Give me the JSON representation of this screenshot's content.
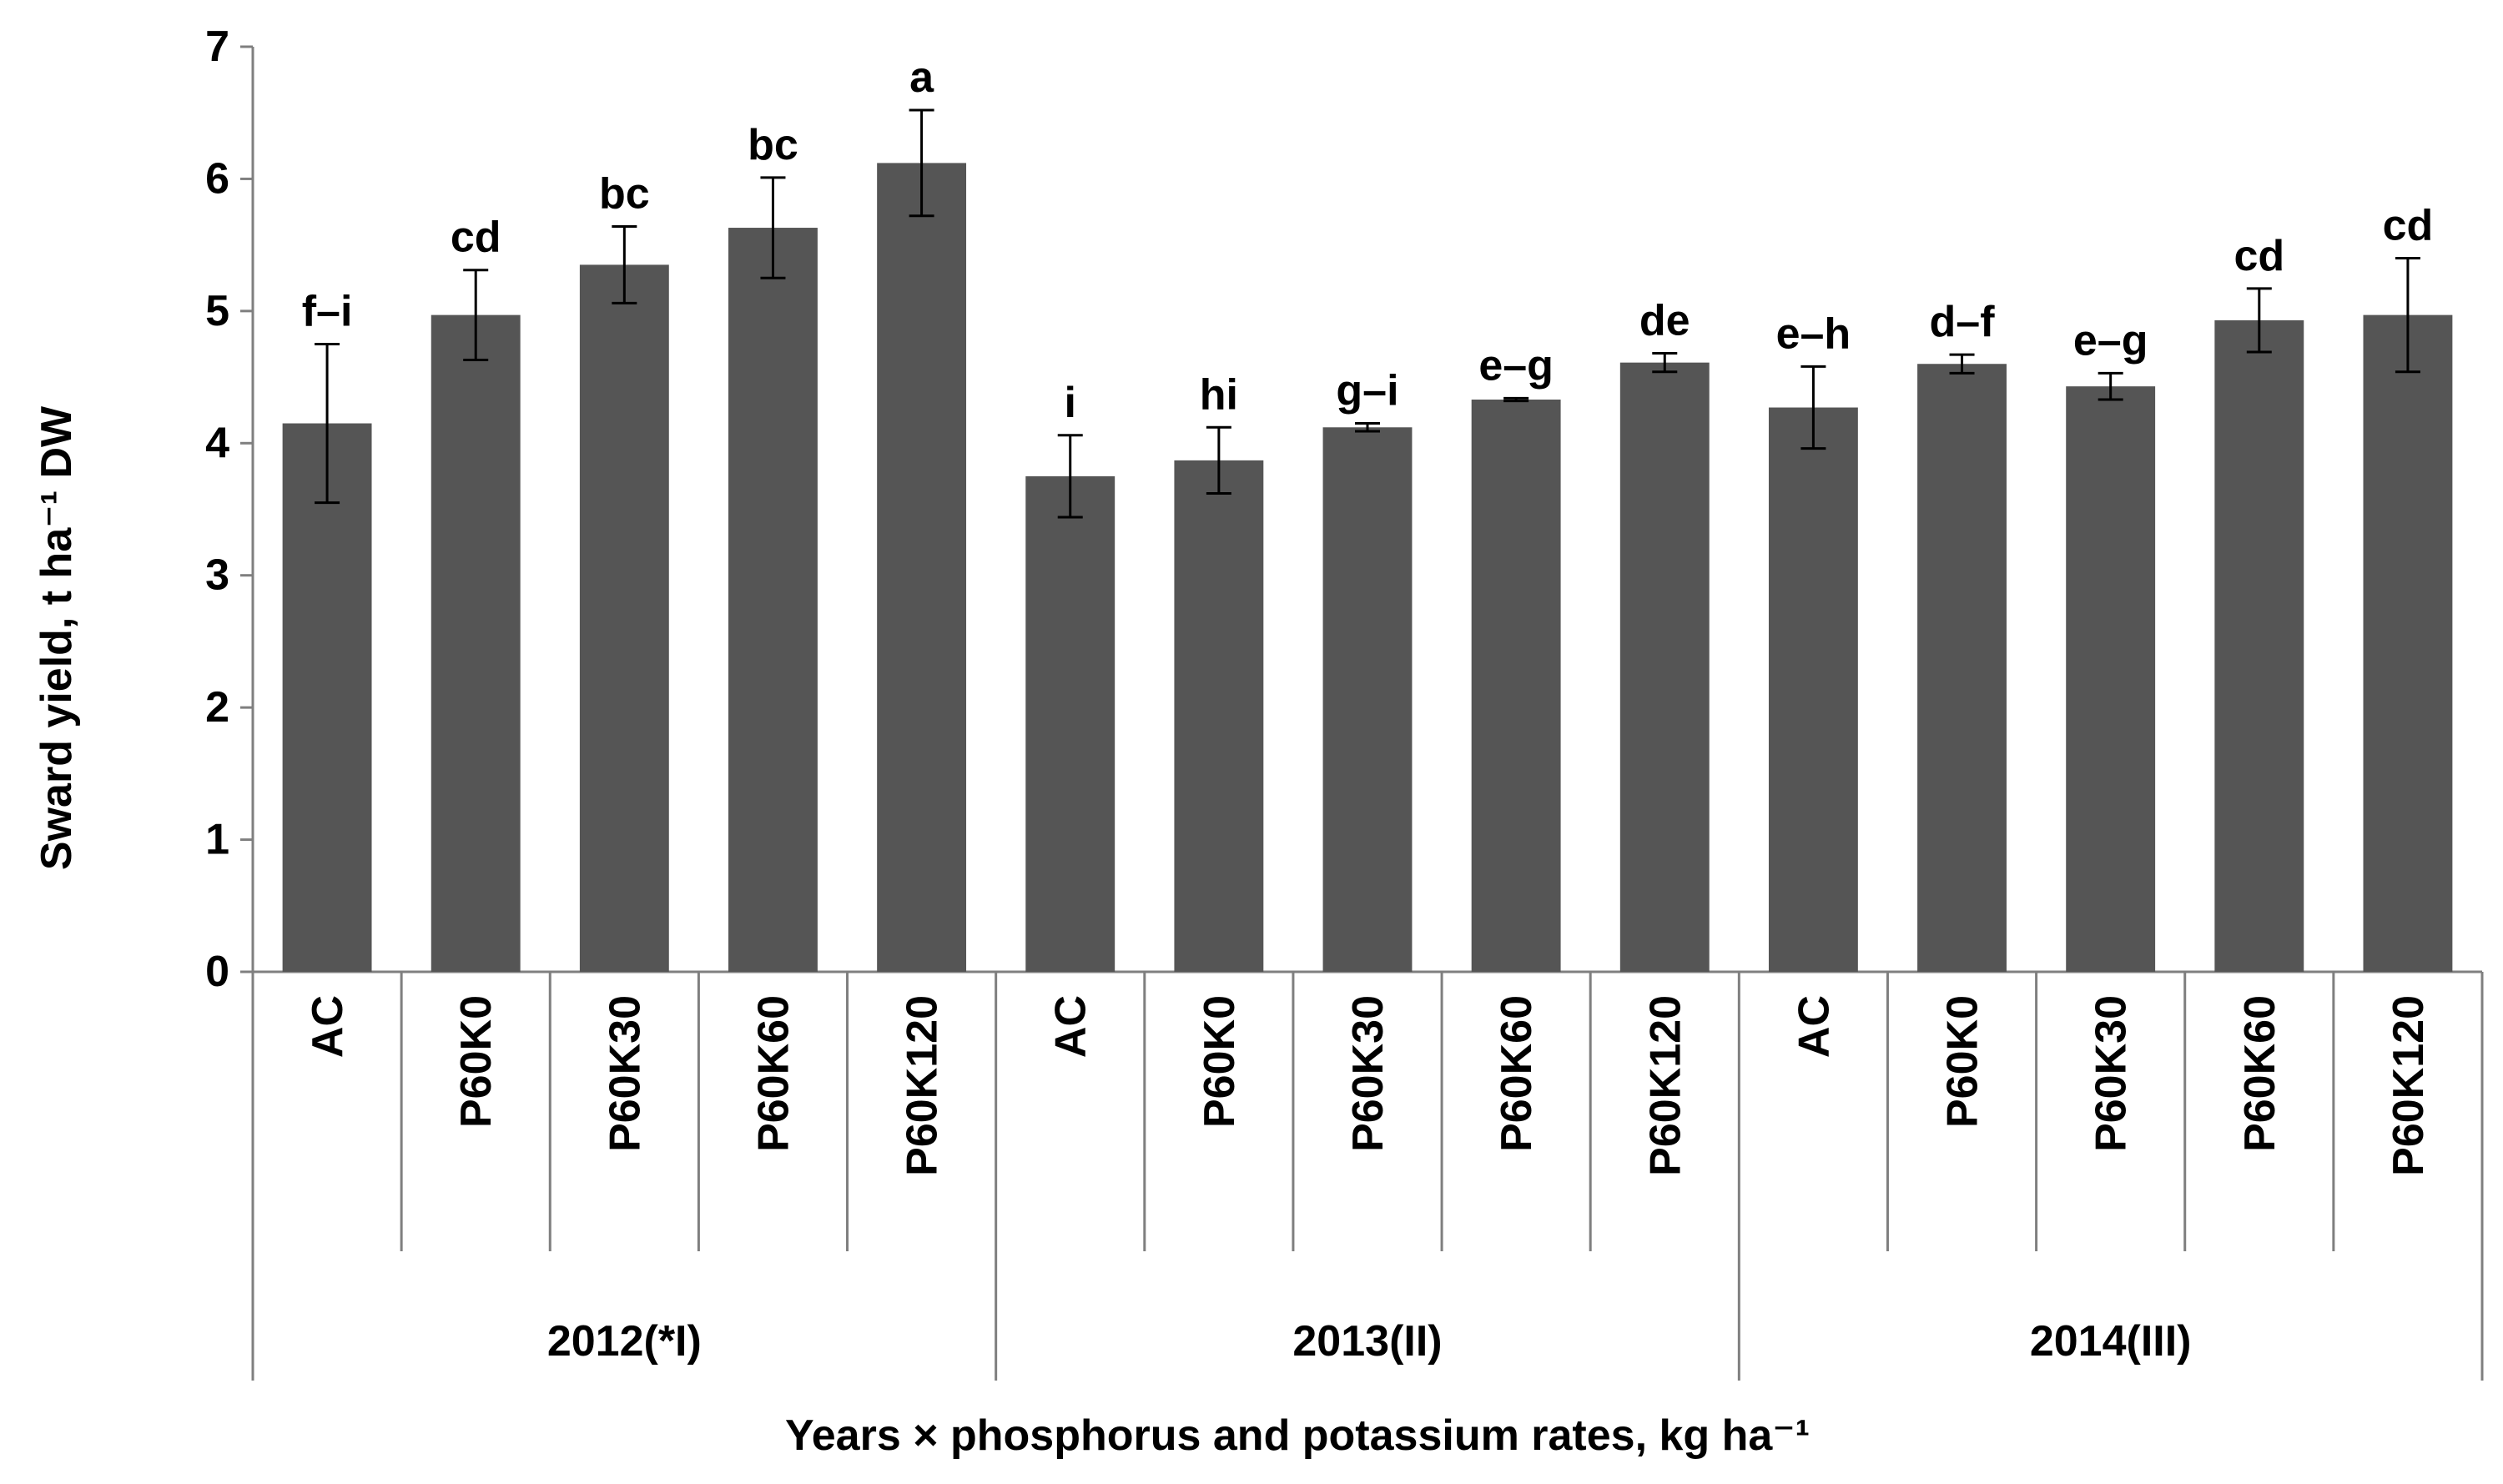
{
  "chart_data": {
    "type": "bar",
    "ylabel": "Sward yield, t ha⁻¹ DW",
    "xlabel": "Years × phosphorus and potassium rates, kg ha⁻¹",
    "ylim": [
      0,
      7
    ],
    "yticks": [
      "0",
      "1",
      "2",
      "3",
      "4",
      "5",
      "6",
      "7"
    ],
    "grid": false,
    "bar_color": "#555555",
    "groups": [
      {
        "label": "2012(*I)",
        "bars": [
          {
            "category": "AC",
            "value": 4.15,
            "error": 0.6,
            "letter": "f–i"
          },
          {
            "category": "P60K0",
            "value": 4.97,
            "error": 0.34,
            "letter": "cd"
          },
          {
            "category": "P60K30",
            "value": 5.35,
            "error": 0.29,
            "letter": "bc"
          },
          {
            "category": "P60K60",
            "value": 5.63,
            "error": 0.38,
            "letter": "bc"
          },
          {
            "category": "P60K120",
            "value": 6.12,
            "error": 0.4,
            "letter": "a"
          }
        ]
      },
      {
        "label": "2013(II)",
        "bars": [
          {
            "category": "AC",
            "value": 3.75,
            "error": 0.31,
            "letter": "i"
          },
          {
            "category": "P60K0",
            "value": 3.87,
            "error": 0.25,
            "letter": "hi"
          },
          {
            "category": "P60K30",
            "value": 4.12,
            "error": 0.03,
            "letter": "g–i"
          },
          {
            "category": "P60K60",
            "value": 4.33,
            "error": 0.01,
            "letter": "e–g"
          },
          {
            "category": "P60K120",
            "value": 4.61,
            "error": 0.07,
            "letter": "de"
          }
        ]
      },
      {
        "label": "2014(III)",
        "bars": [
          {
            "category": "AC",
            "value": 4.27,
            "error": 0.31,
            "letter": "e–h"
          },
          {
            "category": "P60K0",
            "value": 4.6,
            "error": 0.07,
            "letter": "d–f"
          },
          {
            "category": "P60K30",
            "value": 4.43,
            "error": 0.1,
            "letter": "e–g"
          },
          {
            "category": "P60K60",
            "value": 4.93,
            "error": 0.24,
            "letter": "cd"
          },
          {
            "category": "P60K120",
            "value": 4.97,
            "error": 0.43,
            "letter": "cd"
          }
        ]
      }
    ]
  }
}
